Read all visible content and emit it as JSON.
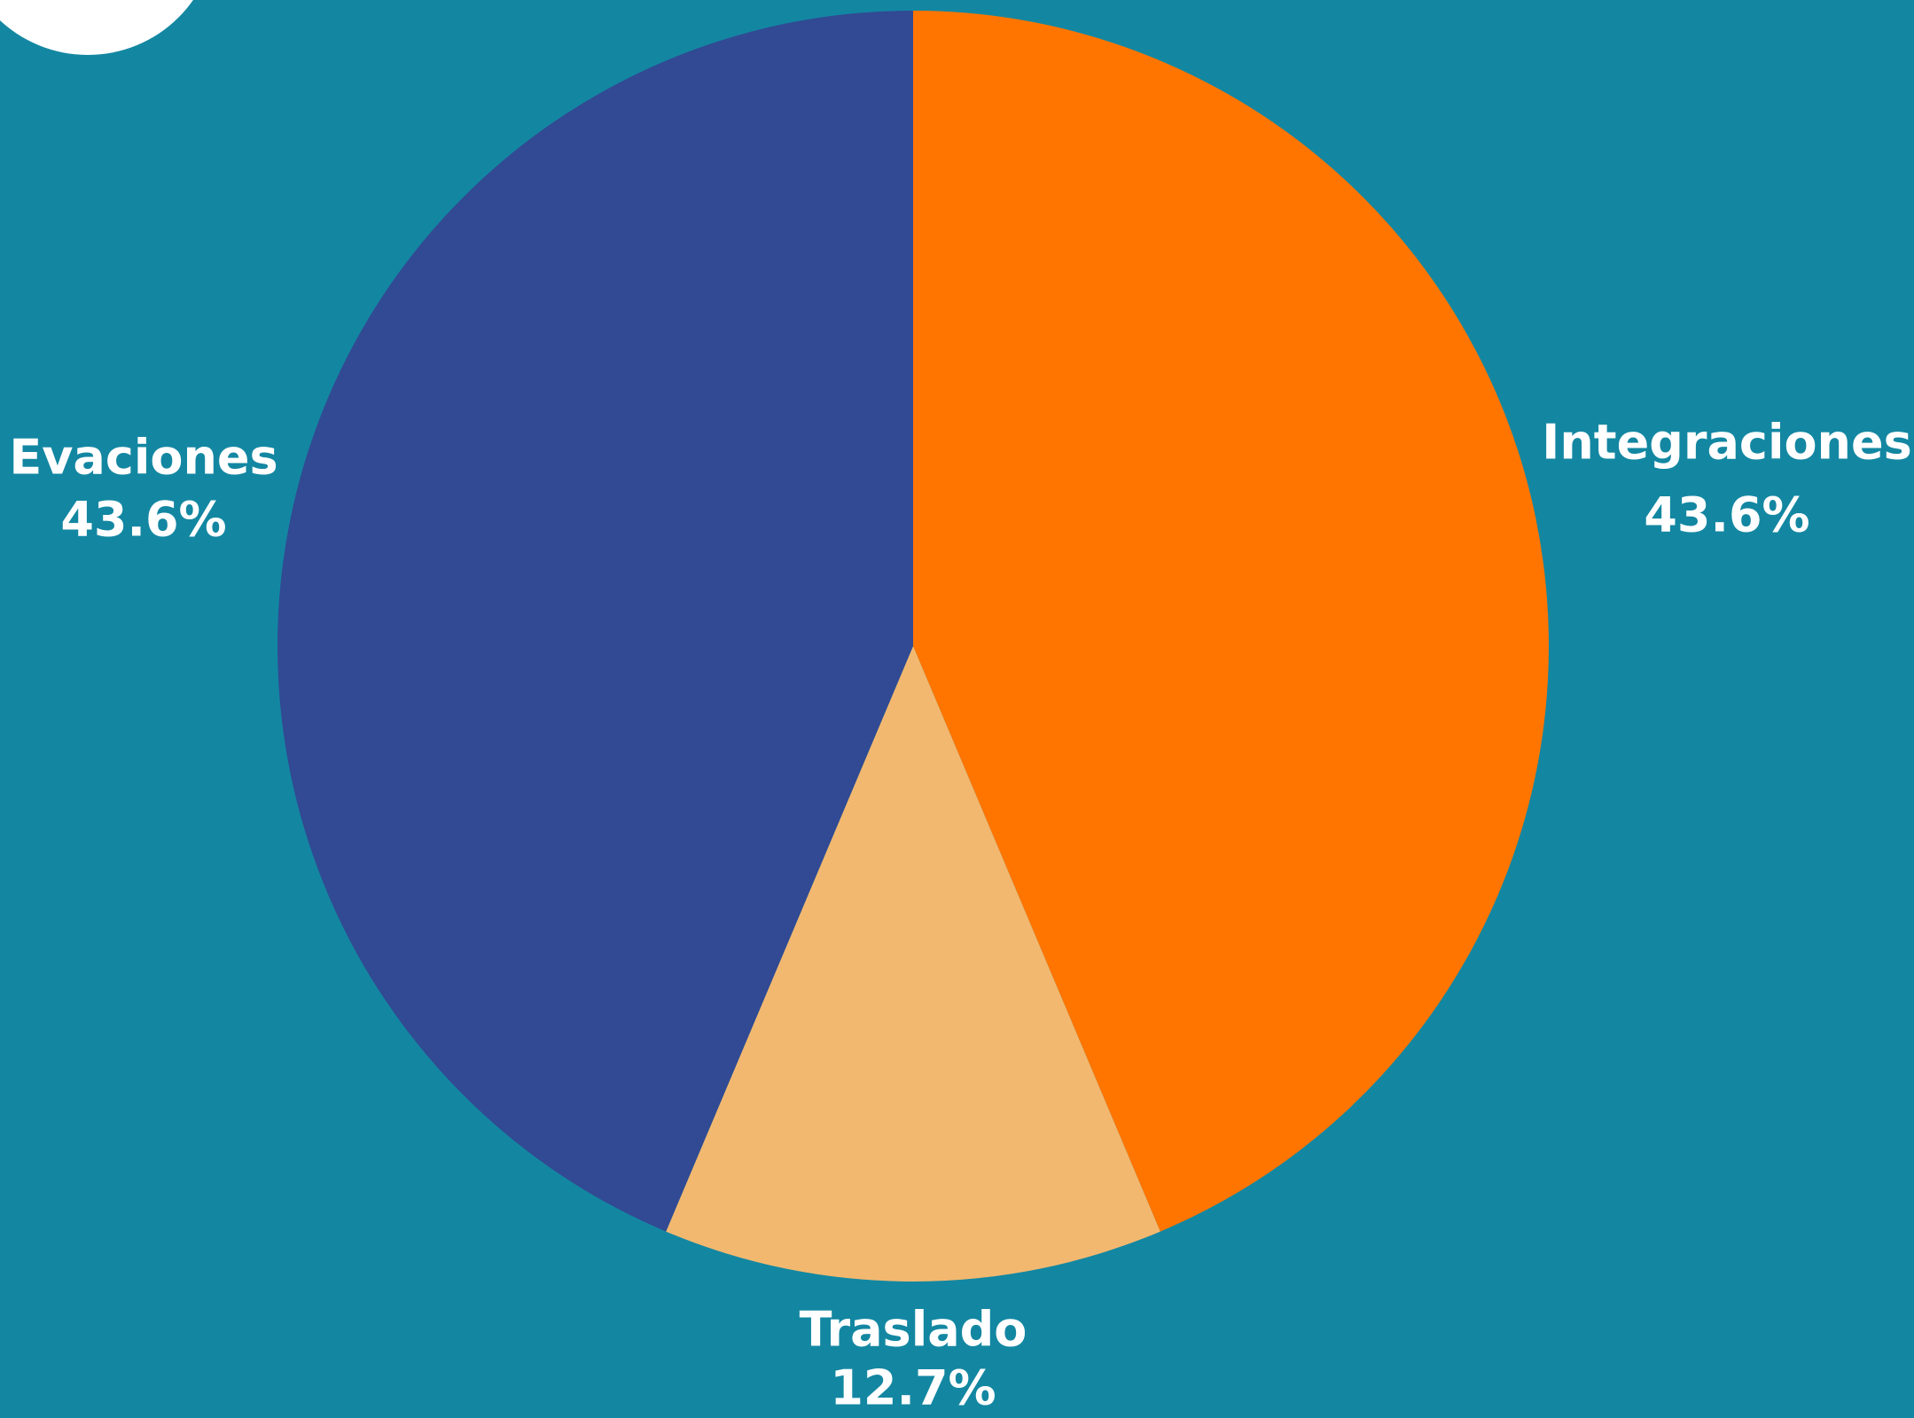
{
  "chart_data": {
    "type": "pie",
    "categories": [
      "Integraciones",
      "Traslado",
      "Evaciones"
    ],
    "values": [
      43.6,
      12.7,
      43.6
    ],
    "value_labels": [
      "43.6%",
      "12.7%",
      "43.6%"
    ],
    "colors": [
      "#ff7500",
      "#f2b870",
      "#314a93"
    ]
  }
}
